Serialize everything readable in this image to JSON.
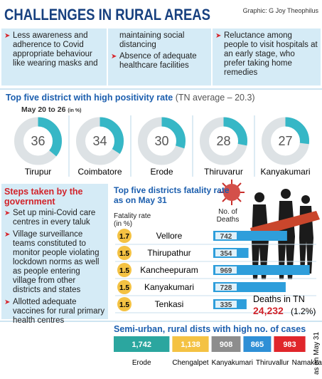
{
  "header": {
    "title": "CHALLENGES IN RURAL AREAS",
    "credit": "Graphic: G Joy Theophilus"
  },
  "challenges": [
    [
      {
        "text": "Less awareness and adherence to Covid appropriate behaviour like wearing masks and",
        "bullet": true
      }
    ],
    [
      {
        "text": "maintaining social distancing",
        "bullet": false
      },
      {
        "text": "Absence of adequate healthcare facilities",
        "bullet": true
      }
    ],
    [
      {
        "text": "Reluctance among people to visit hospitals at an early stage, who prefer taking home remedies",
        "bullet": true
      }
    ]
  ],
  "steps": {
    "title": "Steps taken by the government",
    "items": [
      "Set up mini-Covid care centres in every taluk",
      "Village surveillance teams constituted to monitor people violating lockdown norms as well as people entering village from other districts and states",
      "Allotted adequate vaccines for rural primary health centres"
    ]
  },
  "chart_data": [
    {
      "type": "donut",
      "title": "Top five district with high positivity rate",
      "subtitle": "(TN average – 20.3)",
      "period": "May 20 to 26",
      "unit": "(in %)",
      "categories": [
        "Tirupur",
        "Coimbatore",
        "Erode",
        "Thiruvarur",
        "Kanyakumari"
      ],
      "values": [
        36,
        34,
        30,
        28,
        27
      ],
      "ylim": [
        0,
        100
      ],
      "color": "#36b7c6",
      "track_color": "#dde2e5"
    },
    {
      "type": "hbar",
      "title": "Top five districts fatality rate as on May 31",
      "categories": [
        "Vellore",
        "Thirupathur",
        "Kancheepuram",
        "Kanyakumari",
        "Tenkasi"
      ],
      "series": [
        {
          "name": "Fatality rate (in %)",
          "color": "#f4c243",
          "values": [
            1.7,
            1.5,
            1.5,
            1.5,
            1.5
          ]
        },
        {
          "name": "No. of Deaths",
          "color": "#2e9edb",
          "values": [
            742,
            354,
            969,
            728,
            335
          ]
        }
      ],
      "xlim": [
        0,
        1000
      ],
      "annotation": {
        "label": "Deaths in TN",
        "total": "24,232",
        "rate": "(1.2%)"
      }
    },
    {
      "type": "boxes",
      "title": "Semi-urban, rural dists with high no. of cases",
      "note": "as on May 31",
      "categories": [
        "Erode",
        "Chengalpet",
        "Kanyakumari",
        "Thiruvallur",
        "Namakkal"
      ],
      "values": [
        1742,
        1138,
        908,
        865,
        983
      ],
      "value_labels": [
        "1,742",
        "1,138",
        "908",
        "865",
        "983"
      ],
      "colors": [
        "#2ba69f",
        "#f4c243",
        "#8d8d8d",
        "#2e8fd6",
        "#e0262b"
      ],
      "xlim": [
        0,
        2000
      ]
    }
  ]
}
